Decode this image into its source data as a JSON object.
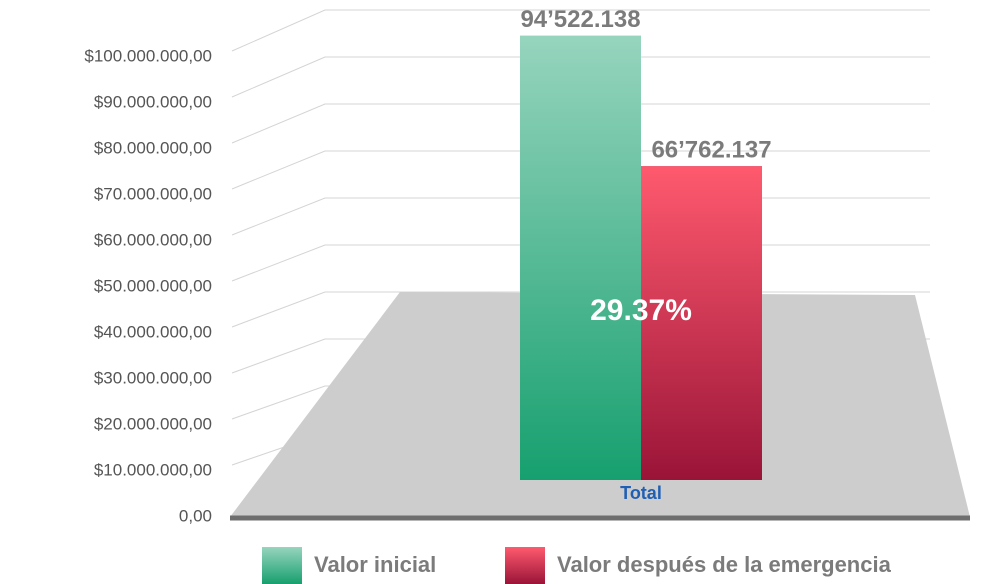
{
  "chart_data": {
    "type": "bar",
    "categories": [
      "Total"
    ],
    "series": [
      {
        "name": "Valor inicial",
        "color": "#17a06f",
        "values": [
          94522138
        ],
        "value_labels": [
          "94’522.138"
        ]
      },
      {
        "name": "Valor después de la emergencia",
        "color": "#9a1438",
        "values": [
          66762137
        ],
        "value_labels": [
          "66’762.137"
        ]
      }
    ],
    "annotation": "29.37%",
    "ylim": [
      0,
      100000000
    ],
    "yticks": [
      {
        "value": 0,
        "label": "0,00"
      },
      {
        "value": 10000000,
        "label": "$10.000.000,00"
      },
      {
        "value": 20000000,
        "label": "$20.000.000,00"
      },
      {
        "value": 30000000,
        "label": "$30.000.000,00"
      },
      {
        "value": 40000000,
        "label": "$40.000.000,00"
      },
      {
        "value": 50000000,
        "label": "$50.000.000,00"
      },
      {
        "value": 60000000,
        "label": "$60.000.000,00"
      },
      {
        "value": 70000000,
        "label": "$70.000.000,00"
      },
      {
        "value": 80000000,
        "label": "$80.000.000,00"
      },
      {
        "value": 90000000,
        "label": "$90.000.000,00"
      },
      {
        "value": 100000000,
        "label": "$100.000.000,00"
      }
    ],
    "grid": true,
    "legend": "bottom"
  }
}
